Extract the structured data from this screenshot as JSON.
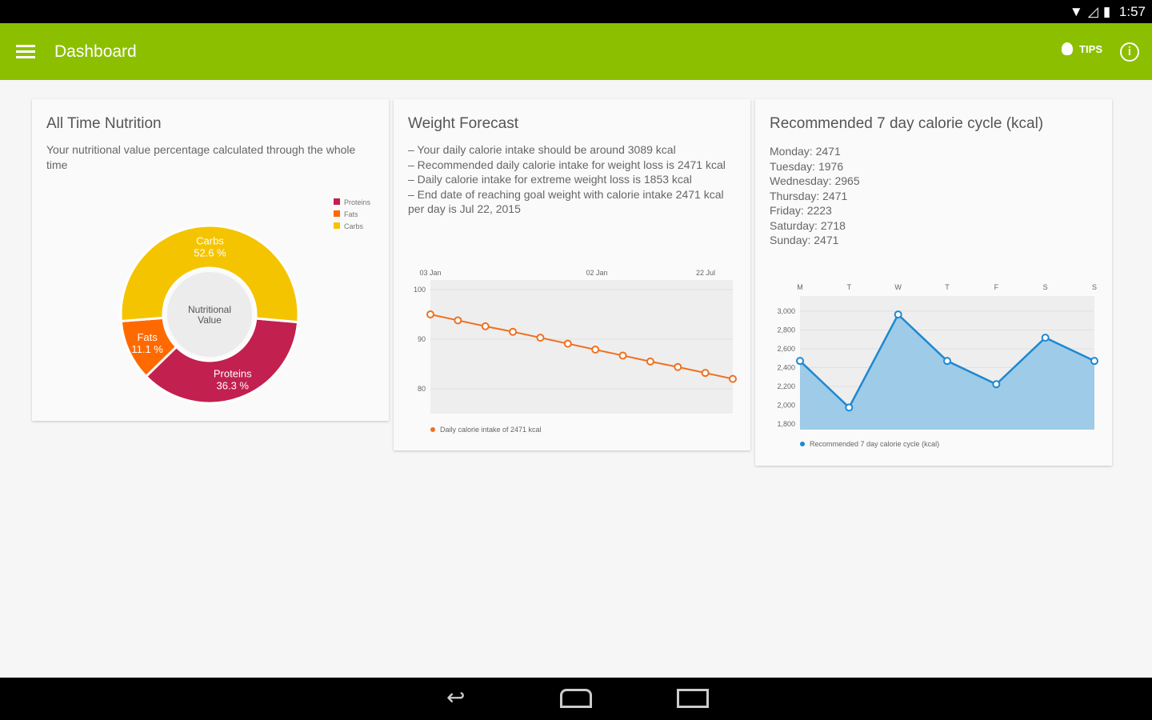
{
  "status": {
    "time": "1:57",
    "icons": [
      "wifi-icon",
      "signal-icon",
      "battery-icon"
    ]
  },
  "appbar": {
    "title": "Dashboard",
    "tips_label": "TIPS",
    "icons": [
      "menu-icon",
      "lightbulb-icon",
      "info-icon"
    ],
    "color": "#8cbf00"
  },
  "nutrition": {
    "title": "All Time Nutrition",
    "description": "Your nutritional value percentage calculated through the whole time",
    "chart_data": {
      "type": "pie",
      "center_label": "Nutritional Value",
      "legend_placement": "top-right",
      "slices": [
        {
          "name": "Proteins",
          "value": 36.3,
          "label": "36.3 %",
          "color": "#c2204e"
        },
        {
          "name": "Fats",
          "value": 11.1,
          "label": "11.1 %",
          "color": "#ff6a00"
        },
        {
          "name": "Carbs",
          "value": 52.6,
          "label": "52.6 %",
          "color": "#f5c400"
        }
      ]
    }
  },
  "weight": {
    "title": "Weight Forecast",
    "description": "– Your daily calorie intake should be around 3089 kcal\n– Recommended daily calorie intake for weight loss is 2471 kcal\n– Daily calorie intake for extreme weight loss is 1853 kcal\n– End date of reaching goal weight with calorie intake 2471 kcal per day is Jul 22, 2015",
    "chart_data": {
      "type": "line",
      "x_tick_labels": [
        "03 Jan",
        "02 Jan",
        "22 Jul"
      ],
      "y_ticks": [
        100,
        90,
        80
      ],
      "ylim": [
        73,
        102
      ],
      "grid": true,
      "color": "#f07020",
      "series": [
        {
          "name": "Daily calorie intake of 2471 kcal",
          "values": [
            95,
            93.8,
            92.6,
            91.5,
            90.3,
            89.1,
            87.9,
            86.7,
            85.5,
            84.4,
            83.2,
            82
          ]
        }
      ]
    }
  },
  "cycle": {
    "title": "Recommended 7 day calorie cycle (kcal)",
    "days": [
      {
        "day": "Monday:",
        "value": "2471"
      },
      {
        "day": "Tuesday:",
        "value": "1976"
      },
      {
        "day": "Wednesday:",
        "value": "2965"
      },
      {
        "day": "Thursday:",
        "value": "2471"
      },
      {
        "day": "Friday:",
        "value": "2223"
      },
      {
        "day": "Saturday:",
        "value": "2718"
      },
      {
        "day": "Sunday:",
        "value": "2471"
      }
    ],
    "chart_data": {
      "type": "area",
      "categories": [
        "M",
        "T",
        "W",
        "T",
        "F",
        "S",
        "S"
      ],
      "y_tick_labels": [
        "3,000",
        "2,800",
        "2,600",
        "2,400",
        "2,200",
        "2,000",
        "1,800"
      ],
      "ylim": [
        1800,
        3160
      ],
      "grid": true,
      "color": "#1e88d0",
      "series": [
        {
          "name": "Recommended 7 day calorie cycle (kcal)",
          "values": [
            2471,
            1976,
            2965,
            2471,
            2223,
            2718,
            2471
          ]
        }
      ]
    }
  }
}
